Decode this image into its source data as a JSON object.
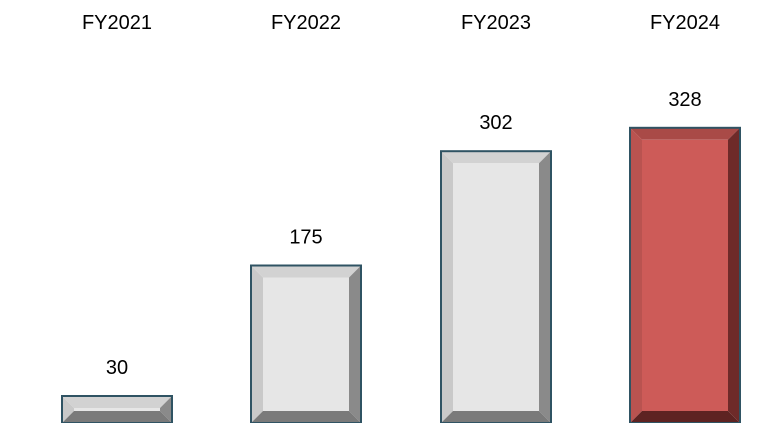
{
  "chart_data": {
    "type": "bar",
    "title": "",
    "xlabel": "",
    "ylabel": "",
    "categories": [
      "FY2021",
      "FY2022",
      "FY2023",
      "FY2024"
    ],
    "values": [
      30,
      175,
      302,
      328
    ],
    "data_labels": [
      "30",
      "175",
      "302",
      "328"
    ],
    "category_axis_position": "top",
    "grid": false,
    "legend": "none",
    "bar_style": "beveled",
    "colors": {
      "default_bar": "#e6e6e6",
      "highlight_bar": "#cd5b58",
      "bar_outline": "#2f5363"
    },
    "highlight_index": 3
  }
}
